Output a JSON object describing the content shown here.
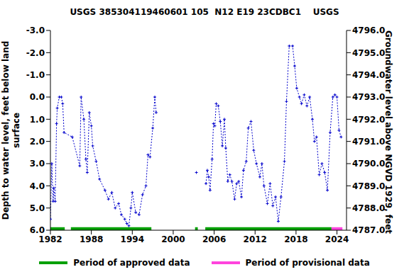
{
  "chart_data": {
    "type": "line",
    "title": "USGS 385304119460601 105  N12 E19 23CDBC1    USGS",
    "y_label": "Depth to water level, feet below land surface",
    "y2_label": "Groundwater level above NGVD 1929, feet",
    "x": [
      1982.0,
      1982.2,
      1982.4,
      1982.5,
      1982.7,
      1982.9,
      1983.0,
      1983.3,
      1983.6,
      1983.8,
      1984.0,
      1985.2,
      1986.3,
      1986.5,
      1986.9,
      1987.2,
      1987.4,
      1987.7,
      1988.0,
      1988.2,
      1988.7,
      1989.2,
      1990.0,
      1990.5,
      1991.0,
      1991.5,
      1992.0,
      1992.4,
      1992.9,
      1993.2,
      1993.5,
      1993.8,
      1994.0,
      1994.5,
      1995.0,
      1995.5,
      1996.0,
      1996.3,
      1996.6,
      1997.0,
      1997.3,
      1997.5,
      2000.0,
      2003.4,
      2004.0,
      2004.8,
      2005.0,
      2005.2,
      2005.4,
      2005.7,
      2005.9,
      2006.1,
      2006.3,
      2006.6,
      2006.9,
      2007.2,
      2007.5,
      2007.7,
      2008.0,
      2008.3,
      2008.6,
      2009.0,
      2009.3,
      2009.6,
      2010.0,
      2010.3,
      2010.7,
      2011.0,
      2011.4,
      2011.8,
      2012.2,
      2012.7,
      2013.0,
      2013.3,
      2013.8,
      2014.2,
      2014.6,
      2015.0,
      2015.4,
      2015.8,
      2016.3,
      2016.6,
      2017.0,
      2017.5,
      2017.8,
      2018.1,
      2018.5,
      2018.8,
      2019.2,
      2019.6,
      2020.0,
      2020.4,
      2020.7,
      2021.0,
      2021.4,
      2021.8,
      2022.2,
      2022.6,
      2023.0,
      2023.4,
      2023.7,
      2024.0,
      2024.3,
      2024.6
    ],
    "series": [
      {
        "color": "#0000cc",
        "marker": "plus",
        "line_style": "dotted",
        "values": [
          5.5,
          3.0,
          4.7,
          4.1,
          4.7,
          1.2,
          0.5,
          0.0,
          0.0,
          0.3,
          1.6,
          1.8,
          3.1,
          0.0,
          1.0,
          2.8,
          3.4,
          0.7,
          1.3,
          2.2,
          2.9,
          3.7,
          4.2,
          4.6,
          4.3,
          5.0,
          4.8,
          5.3,
          5.5,
          5.7,
          5.8,
          5.0,
          4.3,
          5.2,
          5.3,
          4.4,
          4.0,
          2.6,
          2.7,
          1.4,
          0.0,
          0.7,
          null,
          3.4,
          null,
          3.9,
          3.3,
          3.6,
          4.2,
          2.8,
          1.2,
          1.3,
          0.3,
          0.4,
          1.1,
          2.2,
          1.0,
          2.3,
          3.8,
          3.5,
          3.8,
          4.6,
          3.9,
          3.8,
          4.5,
          3.3,
          2.9,
          1.4,
          1.1,
          2.4,
          3.0,
          3.6,
          3.0,
          4.0,
          4.8,
          3.9,
          4.9,
          4.5,
          5.6,
          4.5,
          2.9,
          0.2,
          -2.3,
          -2.3,
          -1.4,
          -0.4,
          0.0,
          0.3,
          -0.1,
          0.4,
          0.0,
          1.0,
          2.0,
          1.8,
          3.5,
          3.0,
          3.4,
          4.2,
          1.6,
          0.0,
          -0.1,
          0.0,
          1.5,
          1.8
        ]
      }
    ],
    "periods": [
      {
        "name": "Period of approved data",
        "color": "#00a000",
        "ranges": [
          [
            1982.0,
            1984.1
          ],
          [
            1985.0,
            1996.8
          ],
          [
            2003.2,
            2003.6
          ],
          [
            2004.7,
            2023.2
          ]
        ]
      },
      {
        "name": "Period of provisional data",
        "color": "#ff44dd",
        "ranges": [
          [
            2023.2,
            2024.8
          ]
        ]
      }
    ],
    "xlim": [
      1982,
      2025.4
    ],
    "xticks": [
      1982,
      1988,
      1994,
      2000,
      2006,
      2012,
      2018,
      2024
    ],
    "ylim": [
      -3,
      6
    ],
    "yticks": [
      {
        "value": -3,
        "label": "-3.0"
      },
      {
        "value": -2,
        "label": "-2.0"
      },
      {
        "value": -1,
        "label": "-1.0"
      },
      {
        "value": 0,
        "label": "0.0"
      },
      {
        "value": 1,
        "label": "1.0"
      },
      {
        "value": 2,
        "label": "2.0"
      },
      {
        "value": 3,
        "label": "3.0"
      },
      {
        "value": 4,
        "label": "4.0"
      },
      {
        "value": 5,
        "label": "5.0"
      },
      {
        "value": 6,
        "label": "6.0"
      }
    ],
    "y2lim": [
      4787,
      4796
    ],
    "y2ticks": [
      {
        "value": 4787,
        "label": "4787.0"
      },
      {
        "value": 4788,
        "label": "4788.0"
      },
      {
        "value": 4789,
        "label": "4789.0"
      },
      {
        "value": 4790,
        "label": "4790.0"
      },
      {
        "value": 4791,
        "label": "4791.0"
      },
      {
        "value": 4792,
        "label": "4792.0"
      },
      {
        "value": 4793,
        "label": "4793.0"
      },
      {
        "value": 4794,
        "label": "4794.0"
      },
      {
        "value": 4795,
        "label": "4795.0"
      },
      {
        "value": 4796,
        "label": "4796.0"
      }
    ],
    "grid": false,
    "legend": "bottom"
  }
}
